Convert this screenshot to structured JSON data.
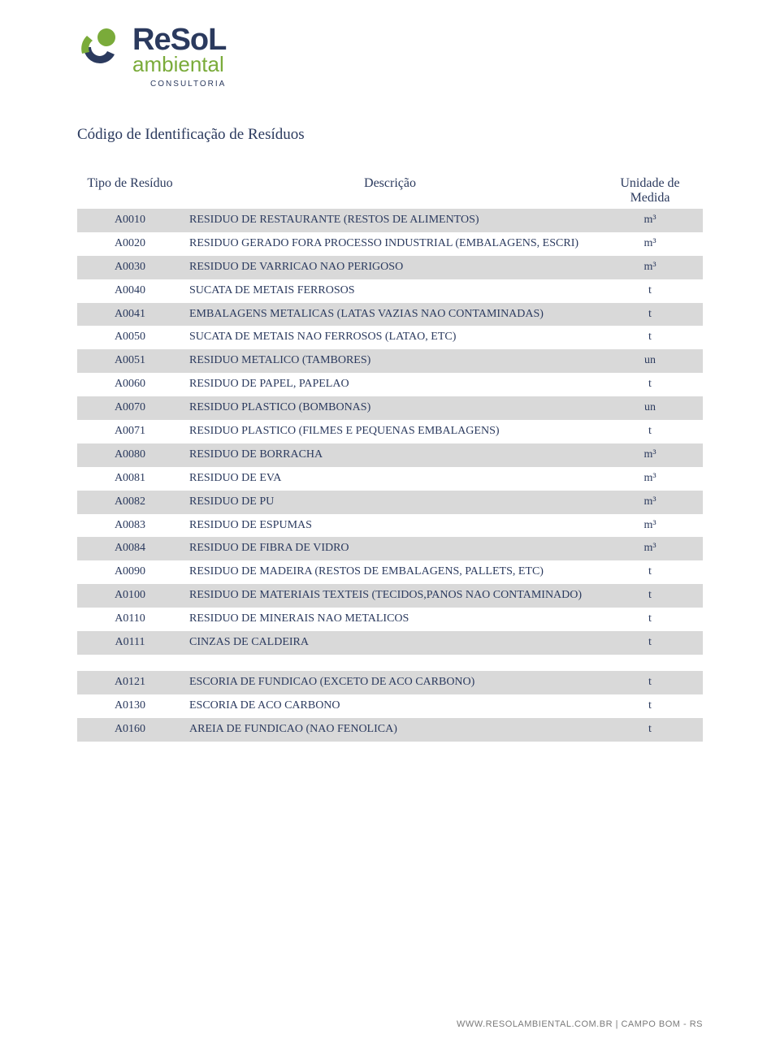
{
  "brand": {
    "line1_resol": "ReSoL",
    "line2_ambiental": "ambiental",
    "line3_consultoria": "CONSULTORIA",
    "mark_colors": {
      "green": "#7aab3a",
      "navy": "#2b3a5e"
    }
  },
  "page_title": "Código de Identificação de Resíduos",
  "table": {
    "columns": [
      "Tipo de Resíduo",
      "Descrição",
      "Unidade de Medida"
    ],
    "row_alt_bg": "#d9d9d9",
    "row_plain_bg": "#ffffff",
    "text_color": "#2b3a5e",
    "rows": [
      {
        "code": "A0010",
        "desc": "RESIDUO DE RESTAURANTE (RESTOS DE ALIMENTOS)",
        "unit": "m³",
        "alt": true
      },
      {
        "code": "A0020",
        "desc": "RESIDUO GERADO FORA PROCESSO INDUSTRIAL (EMBALAGENS, ESCRI)",
        "unit": "m³",
        "alt": false
      },
      {
        "code": "A0030",
        "desc": "RESIDUO DE VARRICAO NAO PERIGOSO",
        "unit": "m³",
        "alt": true
      },
      {
        "code": "A0040",
        "desc": "SUCATA DE METAIS FERROSOS",
        "unit": "t",
        "alt": false
      },
      {
        "code": "A0041",
        "desc": "EMBALAGENS METALICAS (LATAS VAZIAS NAO CONTAMINADAS)",
        "unit": "t",
        "alt": true
      },
      {
        "code": "A0050",
        "desc": "SUCATA DE METAIS NAO FERROSOS (LATAO, ETC)",
        "unit": "t",
        "alt": false
      },
      {
        "code": "A0051",
        "desc": "RESIDUO METALICO (TAMBORES)",
        "unit": "un",
        "alt": true
      },
      {
        "code": "A0060",
        "desc": "RESIDUO DE PAPEL, PAPELAO",
        "unit": "t",
        "alt": false
      },
      {
        "code": "A0070",
        "desc": "RESIDUO PLASTICO (BOMBONAS)",
        "unit": "un",
        "alt": true
      },
      {
        "code": "A0071",
        "desc": "RESIDUO PLASTICO (FILMES E PEQUENAS EMBALAGENS)",
        "unit": "t",
        "alt": false
      },
      {
        "code": "A0080",
        "desc": "RESIDUO DE BORRACHA",
        "unit": "m³",
        "alt": true
      },
      {
        "code": "A0081",
        "desc": "RESIDUO DE EVA",
        "unit": "m³",
        "alt": false
      },
      {
        "code": "A0082",
        "desc": "RESIDUO DE PU",
        "unit": "m³",
        "alt": true
      },
      {
        "code": "A0083",
        "desc": "RESIDUO DE ESPUMAS",
        "unit": "m³",
        "alt": false
      },
      {
        "code": "A0084",
        "desc": "RESIDUO DE FIBRA DE VIDRO",
        "unit": "m³",
        "alt": true
      },
      {
        "code": "A0090",
        "desc": "RESIDUO DE MADEIRA (RESTOS DE EMBALAGENS, PALLETS, ETC)",
        "unit": "t",
        "alt": false
      },
      {
        "code": "A0100",
        "desc": "RESIDUO DE MATERIAIS TEXTEIS (TECIDOS,PANOS NAO CONTAMINADO)",
        "unit": "t",
        "alt": true
      },
      {
        "code": "A0110",
        "desc": "RESIDUO DE MINERAIS NAO METALICOS",
        "unit": "t",
        "alt": false
      },
      {
        "code": "A0111",
        "desc": "CINZAS DE CALDEIRA",
        "unit": "t",
        "alt": true
      },
      {
        "blank": true,
        "alt": false
      },
      {
        "code": "A0121",
        "desc": "ESCORIA DE FUNDICAO (EXCETO DE ACO CARBONO)",
        "unit": "t",
        "alt": true
      },
      {
        "code": "A0130",
        "desc": "ESCORIA DE ACO CARBONO",
        "unit": "t",
        "alt": false
      },
      {
        "code": "A0160",
        "desc": "AREIA DE FUNDICAO (NAO FENOLICA)",
        "unit": "t",
        "alt": true
      }
    ]
  },
  "footer": {
    "text": "WWW.RESOLAMBIENTAL.COM.BR | CAMPO BOM - RS"
  }
}
